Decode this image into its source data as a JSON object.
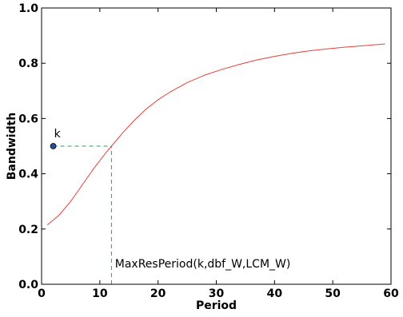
{
  "chart_data": {
    "type": "line",
    "title": "",
    "xlabel": "Period",
    "ylabel": "Bandwidth",
    "xlim": [
      0,
      60
    ],
    "ylim": [
      0.0,
      1.0
    ],
    "x_ticks": [
      0,
      10,
      20,
      30,
      40,
      50,
      60
    ],
    "y_ticks": [
      0.0,
      0.2,
      0.4,
      0.6,
      0.8,
      1.0
    ],
    "x_tick_labels": [
      "0",
      "10",
      "20",
      "30",
      "40",
      "50",
      "60"
    ],
    "y_tick_labels": [
      "0.0",
      "0.2",
      "0.4",
      "0.6",
      "0.8",
      "1.0"
    ],
    "grid": false,
    "series": [
      {
        "color": "#e8403b",
        "x": [
          1,
          3,
          5,
          7,
          9,
          11,
          12,
          14,
          16,
          18,
          20,
          22,
          25,
          28,
          31,
          34,
          37,
          40,
          43,
          46,
          49,
          52,
          55,
          59
        ],
        "y": [
          0.215,
          0.25,
          0.3,
          0.36,
          0.42,
          0.475,
          0.5,
          0.55,
          0.595,
          0.635,
          0.668,
          0.695,
          0.73,
          0.757,
          0.778,
          0.796,
          0.812,
          0.825,
          0.836,
          0.845,
          0.852,
          0.858,
          0.863,
          0.87
        ]
      }
    ],
    "point": {
      "label": "k",
      "x": 2,
      "y": 0.5,
      "color": "#2b4d8f"
    },
    "reference": {
      "color": "#2e9e5b",
      "horizontal": {
        "x1": 2,
        "x2": 12,
        "y": 0.5
      },
      "vertical": {
        "x": 12,
        "y1": 0.0,
        "y2": 0.5
      }
    },
    "annotation": {
      "text": "MaxResPeriod(k,dbf_W,LCM_W)",
      "x": 12.6,
      "y": 0.06
    }
  }
}
